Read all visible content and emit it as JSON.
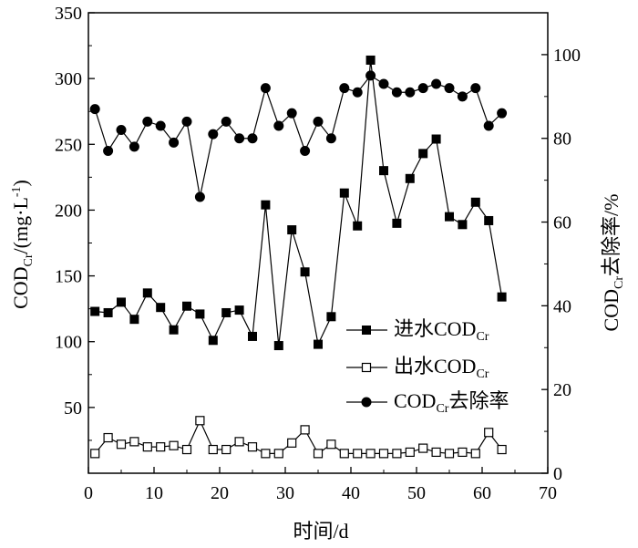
{
  "chart_data": {
    "type": "line",
    "x_axis": {
      "label": "时间/d",
      "range": [
        0,
        70
      ],
      "ticks": [
        0,
        10,
        20,
        30,
        40,
        50,
        60,
        70
      ]
    },
    "y_left": {
      "label_main": "COD",
      "label_sub": "Cr",
      "label_unit": "/(mg·L",
      "label_sup": "-1",
      "label_close": ")",
      "range": [
        0,
        350
      ],
      "ticks": [
        50,
        100,
        150,
        200,
        250,
        300,
        350
      ]
    },
    "y_right": {
      "label_main": "COD",
      "label_sub": "Cr",
      "label_rest": "去除率/%",
      "range": [
        0,
        110
      ],
      "ticks": [
        0,
        20,
        40,
        60,
        80,
        100
      ]
    },
    "legend": [
      {
        "key": "influent",
        "prefix": "进水COD",
        "sub": "Cr",
        "suffix": "",
        "marker": "filled-square"
      },
      {
        "key": "effluent",
        "prefix": "出水COD",
        "sub": "Cr",
        "suffix": "",
        "marker": "open-square"
      },
      {
        "key": "removal",
        "prefix": "COD",
        "sub": "Cr",
        "suffix": "去除率",
        "marker": "filled-circle"
      }
    ],
    "series": [
      {
        "name": "进水CODCr",
        "axis": "left",
        "marker": "filled-square",
        "points": [
          [
            1,
            123
          ],
          [
            3,
            122
          ],
          [
            5,
            130
          ],
          [
            7,
            117
          ],
          [
            9,
            137
          ],
          [
            11,
            126
          ],
          [
            13,
            109
          ],
          [
            15,
            127
          ],
          [
            17,
            121
          ],
          [
            19,
            101
          ],
          [
            21,
            122
          ],
          [
            23,
            124
          ],
          [
            25,
            104
          ],
          [
            27,
            204
          ],
          [
            29,
            97
          ],
          [
            31,
            185
          ],
          [
            33,
            153
          ],
          [
            35,
            98
          ],
          [
            37,
            119
          ],
          [
            39,
            213
          ],
          [
            41,
            188
          ],
          [
            43,
            314
          ],
          [
            45,
            230
          ],
          [
            47,
            190
          ],
          [
            49,
            224
          ],
          [
            51,
            243
          ],
          [
            53,
            254
          ],
          [
            55,
            195
          ],
          [
            57,
            189
          ],
          [
            59,
            206
          ],
          [
            61,
            192
          ],
          [
            63,
            134
          ]
        ]
      },
      {
        "name": "出水CODCr",
        "axis": "left",
        "marker": "open-square",
        "points": [
          [
            1,
            15
          ],
          [
            3,
            27
          ],
          [
            5,
            22
          ],
          [
            7,
            24
          ],
          [
            9,
            20
          ],
          [
            11,
            20
          ],
          [
            13,
            21
          ],
          [
            15,
            18
          ],
          [
            17,
            40
          ],
          [
            19,
            18
          ],
          [
            21,
            18
          ],
          [
            23,
            24
          ],
          [
            25,
            20
          ],
          [
            27,
            15
          ],
          [
            29,
            15
          ],
          [
            31,
            23
          ],
          [
            33,
            33
          ],
          [
            35,
            15
          ],
          [
            37,
            22
          ],
          [
            39,
            15
          ],
          [
            41,
            15
          ],
          [
            43,
            15
          ],
          [
            45,
            15
          ],
          [
            47,
            15
          ],
          [
            49,
            16
          ],
          [
            51,
            19
          ],
          [
            53,
            16
          ],
          [
            55,
            15
          ],
          [
            57,
            16
          ],
          [
            59,
            15
          ],
          [
            61,
            31
          ],
          [
            63,
            18
          ]
        ]
      },
      {
        "name": "CODCr去除率",
        "axis": "right",
        "marker": "filled-circle",
        "points": [
          [
            1,
            87
          ],
          [
            3,
            77
          ],
          [
            5,
            82
          ],
          [
            7,
            78
          ],
          [
            9,
            84
          ],
          [
            11,
            83
          ],
          [
            13,
            79
          ],
          [
            15,
            84
          ],
          [
            17,
            66
          ],
          [
            19,
            81
          ],
          [
            21,
            84
          ],
          [
            23,
            80
          ],
          [
            25,
            80
          ],
          [
            27,
            92
          ],
          [
            29,
            83
          ],
          [
            31,
            86
          ],
          [
            33,
            77
          ],
          [
            35,
            84
          ],
          [
            37,
            80
          ],
          [
            39,
            92
          ],
          [
            41,
            91
          ],
          [
            43,
            95
          ],
          [
            45,
            93
          ],
          [
            47,
            91
          ],
          [
            49,
            91
          ],
          [
            51,
            92
          ],
          [
            53,
            93
          ],
          [
            55,
            92
          ],
          [
            57,
            90
          ],
          [
            59,
            92
          ],
          [
            61,
            83
          ],
          [
            63,
            86
          ]
        ]
      }
    ]
  }
}
